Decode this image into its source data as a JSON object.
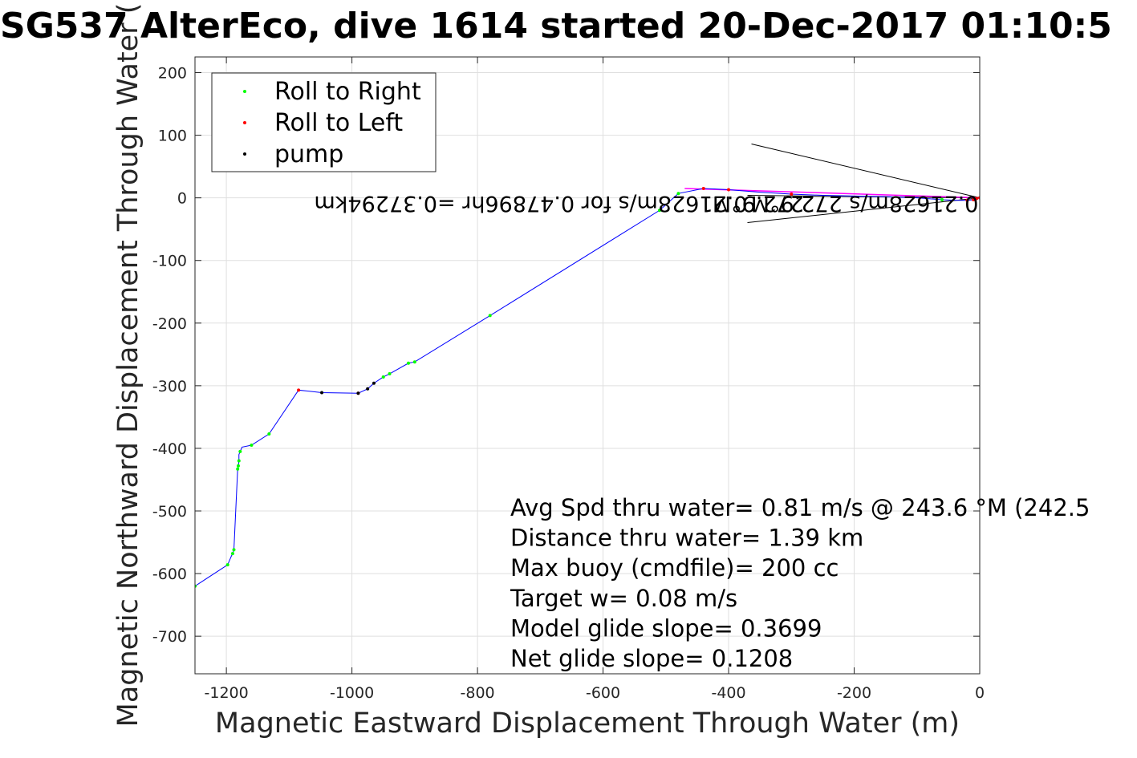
{
  "chart_data": {
    "type": "scatter",
    "title": "SG537 AlterEco, dive 1614 started 20-Dec-2017 01:10:5",
    "xlabel": "Magnetic Eastward Displacement Through Water (m)",
    "ylabel": "Magnetic Northward Displacement Through Water (",
    "xlim": [
      -1250,
      0
    ],
    "ylim": [
      -760,
      225
    ],
    "xticks": [
      -1200,
      -1000,
      -800,
      -600,
      -400,
      -200,
      0
    ],
    "yticks": [
      200,
      100,
      0,
      -100,
      -200,
      -300,
      -400,
      -500,
      -600,
      -700
    ],
    "grid": true,
    "legend_position": "top-left",
    "legend": [
      {
        "label": "Roll to Right",
        "color": "#00ff00"
      },
      {
        "label": "Roll to Left",
        "color": "#ff0000"
      },
      {
        "label": "pump",
        "color": "#000000"
      }
    ],
    "track": {
      "color": "#0000ff",
      "points": [
        [
          0,
          0
        ],
        [
          -5,
          -1
        ],
        [
          -10,
          -3
        ],
        [
          -20,
          -4
        ],
        [
          -35,
          -4
        ],
        [
          -60,
          -3
        ],
        [
          -100,
          0
        ],
        [
          -150,
          2
        ],
        [
          -200,
          3
        ],
        [
          -250,
          4
        ],
        [
          -300,
          6
        ],
        [
          -350,
          9
        ],
        [
          -400,
          13
        ],
        [
          -440,
          15
        ],
        [
          -480,
          7
        ],
        [
          -510,
          -20
        ],
        [
          -780,
          -188
        ],
        [
          -900,
          -262
        ],
        [
          -910,
          -264
        ],
        [
          -940,
          -281
        ],
        [
          -950,
          -286
        ],
        [
          -965,
          -296
        ],
        [
          -975,
          -305
        ],
        [
          -990,
          -312
        ],
        [
          -1048,
          -311
        ],
        [
          -1085,
          -307
        ],
        [
          -1132,
          -377
        ],
        [
          -1160,
          -395
        ],
        [
          -1175,
          -398
        ],
        [
          -1178,
          -405
        ],
        [
          -1180,
          -410
        ],
        [
          -1180,
          -420
        ],
        [
          -1181,
          -428
        ],
        [
          -1182,
          -433
        ],
        [
          -1188,
          -562
        ],
        [
          -1190,
          -568
        ],
        [
          -1192,
          -572
        ],
        [
          -1198,
          -586
        ],
        [
          -1250,
          -620
        ]
      ]
    },
    "series": [
      {
        "name": "Roll to Right",
        "color": "#00ff00",
        "points": [
          [
            -1250,
            -620
          ],
          [
            -1198,
            -586
          ],
          [
            -1190,
            -568
          ],
          [
            -1188,
            -562
          ],
          [
            -1182,
            -433
          ],
          [
            -1181,
            -428
          ],
          [
            -1180,
            -420
          ],
          [
            -1178,
            -405
          ],
          [
            -1160,
            -395
          ],
          [
            -1132,
            -377
          ],
          [
            -950,
            -286
          ],
          [
            -940,
            -281
          ],
          [
            -910,
            -264
          ],
          [
            -900,
            -262
          ],
          [
            -780,
            -188
          ],
          [
            -510,
            -20
          ],
          [
            -480,
            7
          ],
          [
            -60,
            -3
          ]
        ]
      },
      {
        "name": "Roll to Left",
        "color": "#ff0000",
        "points": [
          [
            -1085,
            -307
          ],
          [
            -990,
            -312
          ],
          [
            -440,
            15
          ],
          [
            -400,
            13
          ],
          [
            -300,
            6
          ],
          [
            -20,
            -4
          ],
          [
            -10,
            -3
          ],
          [
            -5,
            -1
          ],
          [
            0,
            0
          ]
        ]
      },
      {
        "name": "pump",
        "color": "#000000",
        "points": [
          [
            -1048,
            -311
          ],
          [
            -990,
            -312
          ],
          [
            -975,
            -305
          ],
          [
            -965,
            -296
          ]
        ]
      }
    ],
    "current_arrows": [
      {
        "label": "0.21628m/s 272.9°M",
        "tip": [
          0,
          0
        ],
        "tail": [
          -370,
          4
        ],
        "color": "#000000"
      },
      {
        "label": "0.47896hr =0.37294km",
        "tip": [
          0,
          0
        ],
        "tail": [
          -470,
          15
        ],
        "color": "#ff00ff"
      }
    ],
    "current_annotation": [
      {
        "text": "0.21628m/s 272.9°M",
        "x": -2,
        "y": 2,
        "rotation_deg": 180
      },
      {
        "text": "0.21628m/s for 0.47896hr =0.37294km",
        "x": -370,
        "y": 2,
        "rotation_deg": 180
      },
      {
        "text": "272.9°M",
        "x": -280,
        "y": 2,
        "rotation_deg": 180
      }
    ],
    "stats": [
      "Avg Spd thru water=  0.81 m/s @ 243.6 °M (242.5",
      "Distance thru water=  1.39 km",
      "Max buoy (cmdfile)= 200 cc",
      "Target w= 0.08 m/s",
      "Model glide slope= 0.3699",
      "Net glide slope= 0.1208"
    ]
  }
}
